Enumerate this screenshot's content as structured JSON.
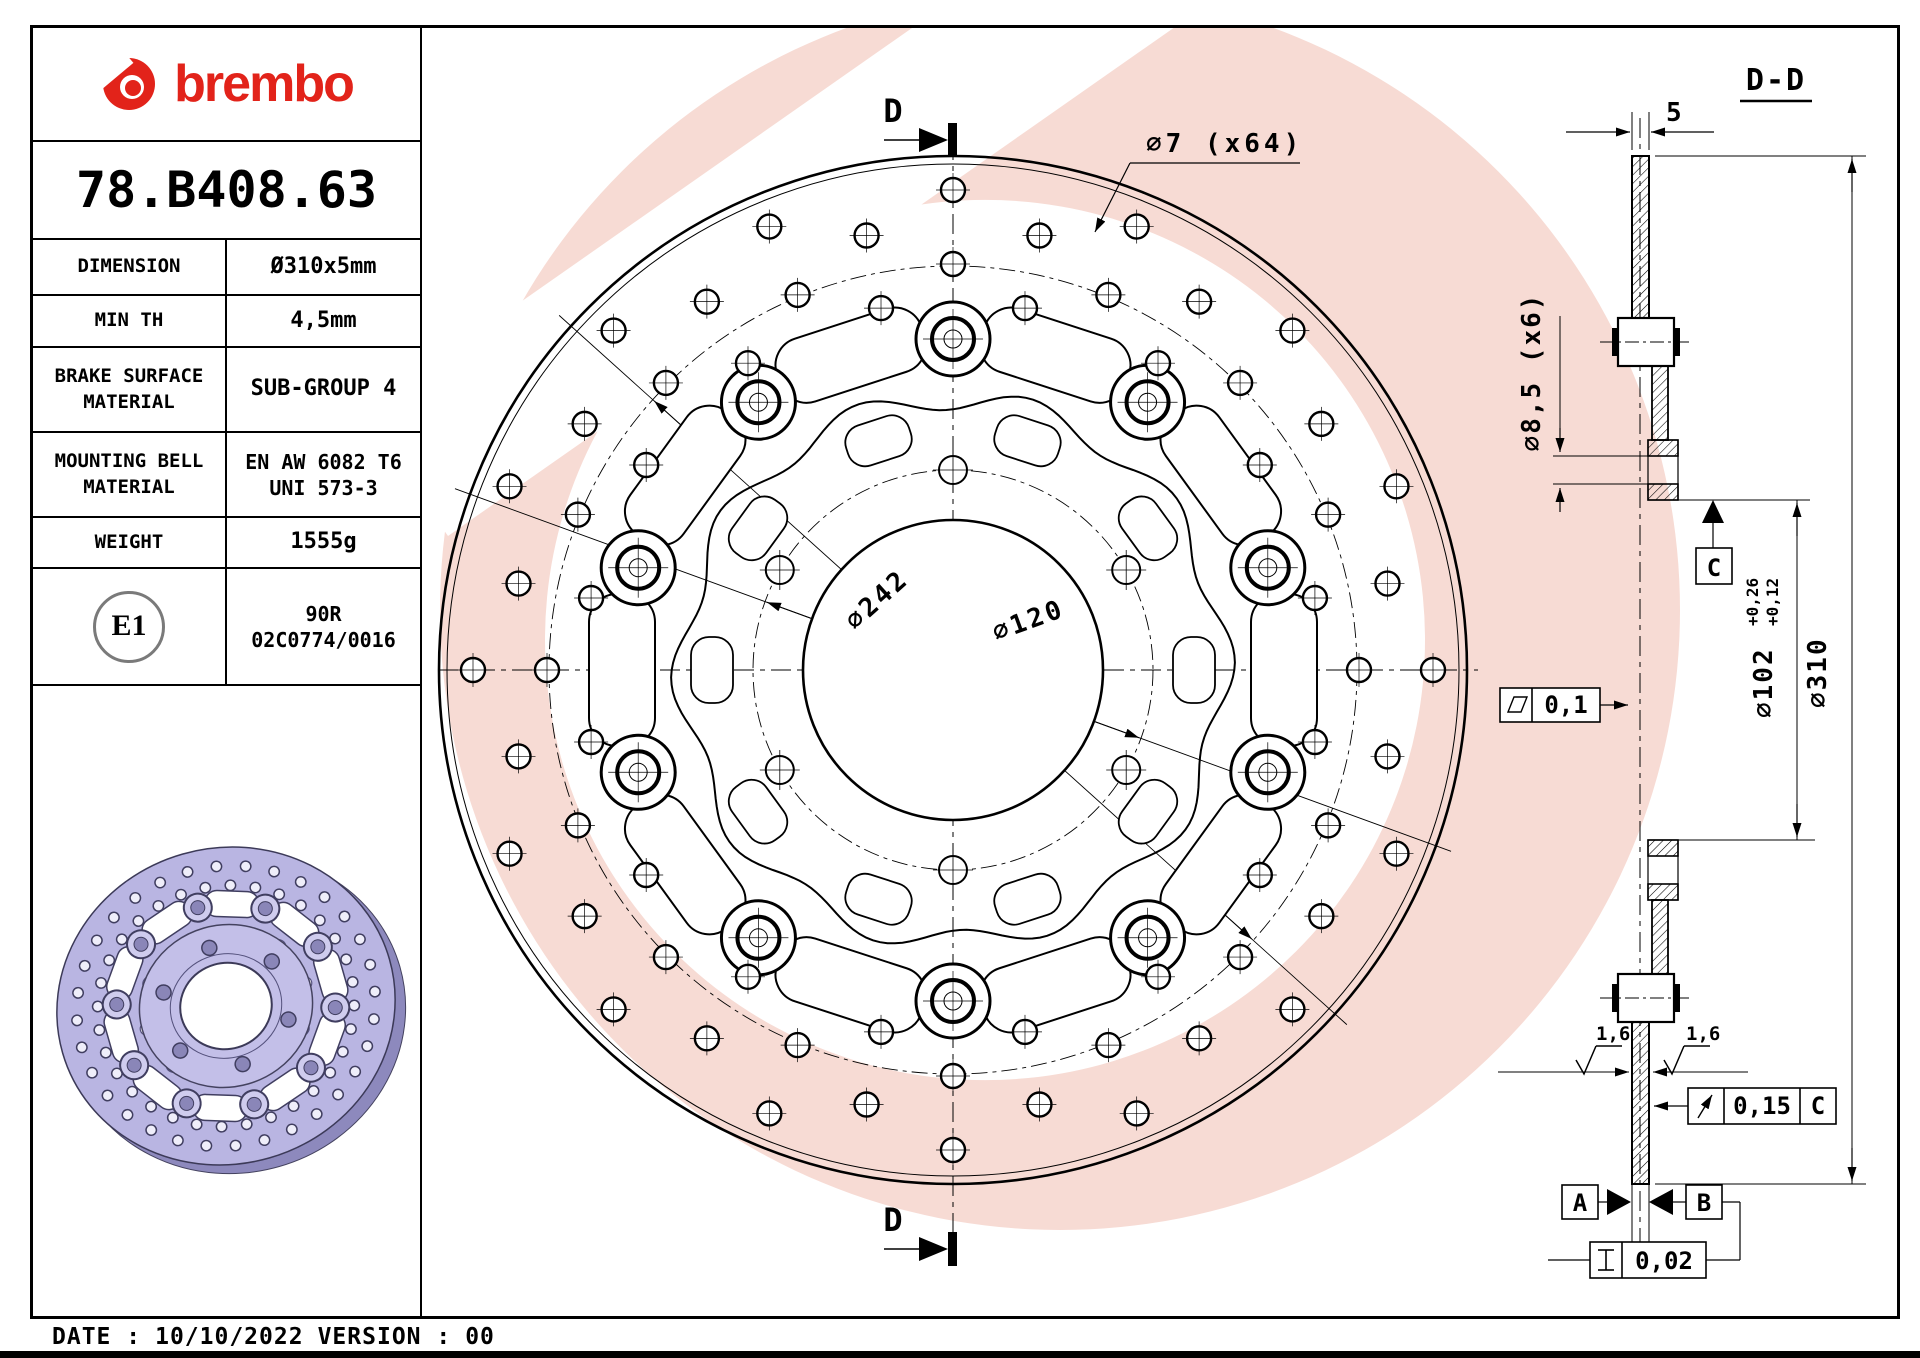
{
  "brand": {
    "wordmark": "brembo"
  },
  "part_number": "78.B408.63",
  "spec_table": {
    "rows": [
      {
        "label": "DIMENSION",
        "value": "Ø310x5mm"
      },
      {
        "label": "MIN TH",
        "value": "4,5mm"
      },
      {
        "label": "BRAKE SURFACE MATERIAL",
        "value": "SUB-GROUP 4"
      },
      {
        "label": "MOUNTING BELL MATERIAL",
        "value": "EN AW 6082 T6",
        "value2": "UNI 573-3"
      },
      {
        "label": "WEIGHT",
        "value": "1555g"
      }
    ]
  },
  "homologation": {
    "badge": "E1",
    "line1": "90R",
    "line2": "02C0774/0016"
  },
  "front_view": {
    "section_marker": "D",
    "holes_dim": "∅7 (x64)",
    "bolt_circle_dim": "∅242",
    "bell_circle_dim": "∅120"
  },
  "section_view": {
    "title": "D-D",
    "thickness_dim": "5",
    "bell_holes_dim": "∅8,5 (x6)",
    "pilot_dim": "∅102",
    "pilot_tol_upper": "+0,26",
    "pilot_tol_lower": "+0,12",
    "outer_dim": "∅310",
    "flatness_tol": "0,1",
    "roughness_left": "1,6",
    "roughness_right": "1,6",
    "runout_tol": "0,15",
    "runout_datum": "C",
    "datum_a": "A",
    "datum_b": "B",
    "datum_c": "C",
    "parallelism_tol": "0,02"
  },
  "footer": {
    "date_label": "DATE :",
    "date": "10/10/2022",
    "version_label": "VERSION :",
    "version": "00"
  },
  "colors": {
    "brand_red": "#e2231a",
    "watermark_pink": "#f7dbd4",
    "render_lilac": "#b9b5e2"
  }
}
